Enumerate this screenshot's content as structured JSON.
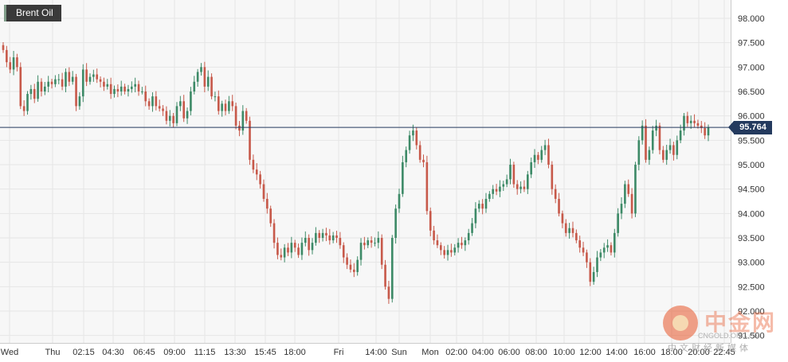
{
  "chart_data": {
    "type": "candlestick",
    "title": "Brent Oil",
    "y_ticks": [
      "98.000",
      "97.500",
      "97.000",
      "96.500",
      "96.000",
      "95.500",
      "95.000",
      "94.500",
      "94.000",
      "93.500",
      "93.000",
      "92.500",
      "92.000",
      "91.500"
    ],
    "ylim": [
      91.4,
      98.2
    ],
    "current_price": 95.764,
    "current_price_label": "95.764",
    "x_ticks": [
      "Wed",
      "Thu",
      "02:15",
      "04:30",
      "06:45",
      "09:00",
      "11:15",
      "13:30",
      "15:45",
      "18:00",
      "Fri",
      "14:00",
      "Sun",
      "Mon",
      "02:00",
      "04:00",
      "06:00",
      "08:00",
      "10:00",
      "12:00",
      "14:00",
      "16:00",
      "18:00",
      "20:00",
      "22:45"
    ],
    "grid": true,
    "colors": {
      "up": "#3d8a67",
      "down": "#c7594a",
      "price_line": "#243a5e",
      "grid": "#e6e6e6",
      "background": "#f7f7f7"
    },
    "closes": [
      97.35,
      97.1,
      96.95,
      97.2,
      97.0,
      96.2,
      96.1,
      96.45,
      96.55,
      96.35,
      96.7,
      96.5,
      96.6,
      96.7,
      96.65,
      96.75,
      96.75,
      96.6,
      96.9,
      96.7,
      96.8,
      96.2,
      96.4,
      96.95,
      96.7,
      96.8,
      96.85,
      96.75,
      96.7,
      96.6,
      96.65,
      96.45,
      96.55,
      96.5,
      96.6,
      96.5,
      96.55,
      96.6,
      96.65,
      96.5,
      96.5,
      96.3,
      96.2,
      96.4,
      96.2,
      96.15,
      96.1,
      95.9,
      96.0,
      95.85,
      96.2,
      96.3,
      95.95,
      96.1,
      96.5,
      96.7,
      96.9,
      97.0,
      96.6,
      96.8,
      96.4,
      96.4,
      96.1,
      96.25,
      96.1,
      96.3,
      96.2,
      95.8,
      95.7,
      96.1,
      95.9,
      95.1,
      94.9,
      94.8,
      94.6,
      94.3,
      94.1,
      93.8,
      93.4,
      93.15,
      93.1,
      93.3,
      93.2,
      93.4,
      93.3,
      93.15,
      93.4,
      93.5,
      93.25,
      93.4,
      93.6,
      93.5,
      93.6,
      93.55,
      93.45,
      93.55,
      93.5,
      93.35,
      93.1,
      92.95,
      92.85,
      92.8,
      93.05,
      93.4,
      93.35,
      93.45,
      93.4,
      93.4,
      93.5,
      92.95,
      92.5,
      92.25,
      93.5,
      94.1,
      94.4,
      95.05,
      95.3,
      95.6,
      95.7,
      95.4,
      95.1,
      95.05,
      94.05,
      93.65,
      93.45,
      93.35,
      93.25,
      93.15,
      93.25,
      93.2,
      93.3,
      93.4,
      93.35,
      93.45,
      93.6,
      93.8,
      94.1,
      94.2,
      94.1,
      94.3,
      94.4,
      94.5,
      94.45,
      94.55,
      94.6,
      94.7,
      95.0,
      94.6,
      94.5,
      94.55,
      94.5,
      94.8,
      95.05,
      95.2,
      95.1,
      95.3,
      95.4,
      95.0,
      94.5,
      94.3,
      94.0,
      93.8,
      93.6,
      93.7,
      93.6,
      93.45,
      93.3,
      93.2,
      93.0,
      92.6,
      92.8,
      93.1,
      93.2,
      93.3,
      93.35,
      93.2,
      93.6,
      94.0,
      94.2,
      94.6,
      94.4,
      94.0,
      95.0,
      95.5,
      95.8,
      95.1,
      95.3,
      95.7,
      95.8,
      95.3,
      95.1,
      95.3,
      95.4,
      95.2,
      95.5,
      95.7,
      96.0,
      95.85,
      95.9,
      95.85,
      95.8,
      95.75,
      95.6,
      95.764
    ]
  }
}
